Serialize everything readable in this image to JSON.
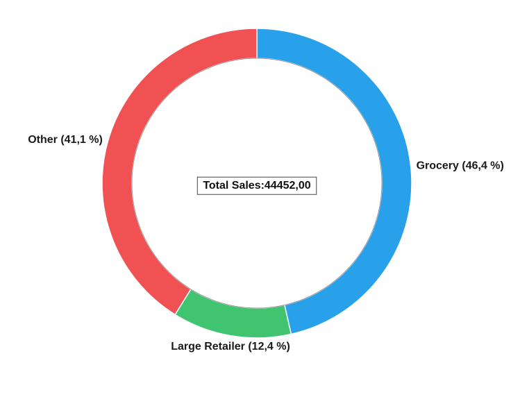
{
  "chart_data": {
    "type": "pie",
    "subtype": "donut",
    "center_label": "Total Sales:44452,00",
    "total": 44452.0,
    "legend": "none",
    "slices": [
      {
        "name": "Grocery",
        "label": "Grocery (46,4 %)",
        "percent": 46.4,
        "color": "#28a0ea"
      },
      {
        "name": "Large Retailer",
        "label": "Large Retailer (12,4 %)",
        "percent": 12.4,
        "color": "#41c46f"
      },
      {
        "name": "Other",
        "label": "Other (41,1 %)",
        "percent": 41.1,
        "color": "#f05152"
      }
    ]
  }
}
